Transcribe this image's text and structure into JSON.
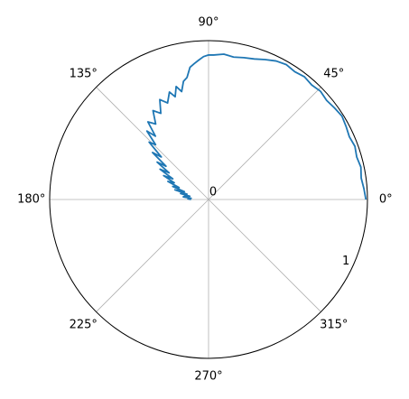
{
  "chart_data": {
    "type": "polar-line",
    "title": "",
    "angle_unit": "degrees",
    "theta_ticks": [
      0,
      45,
      90,
      135,
      180,
      225,
      270,
      315
    ],
    "theta_labels": [
      "0°",
      "45°",
      "90°",
      "135°",
      "180°",
      "225°",
      "270°",
      "315°"
    ],
    "r_ticks": [
      0,
      1
    ],
    "r_labels": [
      "0",
      "1"
    ],
    "r_label_angle_deg": 337.5,
    "rlim": [
      0,
      1.0
    ],
    "grid": true,
    "colors": {
      "series": "#1f77b4",
      "grid": "#b0b0b0",
      "frame": "#000000"
    },
    "series": [
      {
        "theta_deg": [
          0,
          4,
          8,
          12,
          16,
          20,
          24,
          28,
          32,
          36,
          40,
          44,
          48,
          52,
          56,
          60,
          64,
          68,
          72,
          76,
          80,
          84,
          88,
          90,
          92,
          94,
          96,
          98,
          100,
          102,
          104,
          106,
          108,
          110,
          113,
          116,
          119,
          122,
          125,
          128,
          130,
          132,
          134,
          136,
          138,
          140,
          142,
          144,
          146,
          148,
          150,
          152,
          154,
          156,
          158,
          160,
          162,
          164,
          166,
          168,
          170,
          172,
          174,
          176,
          178,
          180
        ],
        "r": [
          0.99,
          0.98,
          0.97,
          0.98,
          0.97,
          0.98,
          0.97,
          0.98,
          0.99,
          0.98,
          0.97,
          0.98,
          0.97,
          0.98,
          0.97,
          0.98,
          0.97,
          0.95,
          0.93,
          0.92,
          0.91,
          0.92,
          0.91,
          0.91,
          0.9,
          0.88,
          0.86,
          0.84,
          0.78,
          0.76,
          0.7,
          0.74,
          0.68,
          0.72,
          0.66,
          0.7,
          0.62,
          0.66,
          0.58,
          0.62,
          0.52,
          0.58,
          0.48,
          0.52,
          0.4,
          0.46,
          0.34,
          0.4,
          0.3,
          0.36,
          0.26,
          0.32,
          0.24,
          0.28,
          0.2,
          0.24,
          0.16,
          0.22,
          0.14,
          0.18,
          0.12,
          0.15,
          0.16,
          0.11,
          0.13,
          0.11
        ]
      }
    ]
  }
}
